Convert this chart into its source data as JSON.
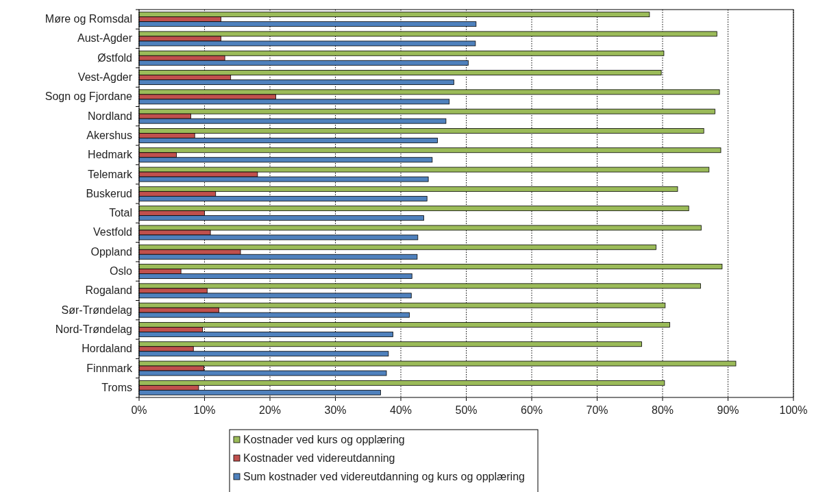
{
  "chart_data": {
    "type": "bar",
    "orientation": "horizontal",
    "categories": [
      "Møre og Romsdal",
      "Aust-Agder",
      "Østfold",
      "Vest-Agder",
      "Sogn og Fjordane",
      "Nordland",
      "Akershus",
      "Hedmark",
      "Telemark",
      "Buskerud",
      "Total",
      "Vestfold",
      "Oppland",
      "Oslo",
      "Rogaland",
      "Sør-Trøndelag",
      "Nord-Trøndelag",
      "Hordaland",
      "Finnmark",
      "Troms"
    ],
    "series": [
      {
        "name": "Kostnader ved kurs og opplæring",
        "color": "#9bbb59",
        "values": [
          78.0,
          88.3,
          80.2,
          79.8,
          88.7,
          88.0,
          86.3,
          88.9,
          87.1,
          82.3,
          84.0,
          85.9,
          79.0,
          89.1,
          85.8,
          80.4,
          81.1,
          76.8,
          91.2,
          80.3
        ]
      },
      {
        "name": "Kostnader ved videreutdanning",
        "color": "#c0504d",
        "values": [
          12.5,
          12.5,
          13.1,
          14.0,
          20.9,
          7.9,
          8.5,
          5.7,
          18.1,
          11.7,
          10.0,
          10.9,
          15.5,
          6.4,
          10.4,
          12.2,
          9.7,
          8.3,
          9.9,
          9.1
        ]
      },
      {
        "name": "Sum kostnader ved videreutdanning og kurs og opplæring",
        "color": "#4f81bd",
        "values": [
          51.5,
          51.4,
          50.3,
          48.1,
          47.4,
          46.9,
          45.6,
          44.8,
          44.2,
          44.0,
          43.5,
          42.6,
          42.5,
          41.7,
          41.6,
          41.3,
          38.8,
          38.1,
          37.8,
          36.9
        ]
      }
    ],
    "xlim": [
      0,
      100
    ],
    "xticks": [
      {
        "value": 0,
        "label": "0%"
      },
      {
        "value": 10,
        "label": "10%"
      },
      {
        "value": 20,
        "label": "20%"
      },
      {
        "value": 30,
        "label": "30%"
      },
      {
        "value": 40,
        "label": "40%"
      },
      {
        "value": 50,
        "label": "50%"
      },
      {
        "value": 60,
        "label": "60%"
      },
      {
        "value": 70,
        "label": "70%"
      },
      {
        "value": 80,
        "label": "80%"
      },
      {
        "value": 90,
        "label": "90%"
      },
      {
        "value": 100,
        "label": "100%"
      }
    ],
    "grid": "x",
    "legend": "bottom"
  }
}
